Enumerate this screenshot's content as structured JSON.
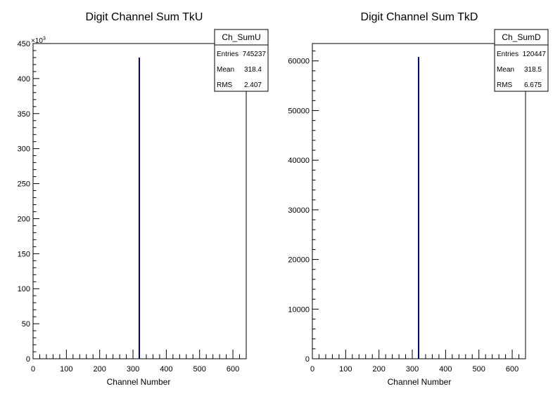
{
  "colors": {
    "histogram": "#000080",
    "frame": "#000000",
    "background": "#ffffff"
  },
  "chart_data": [
    {
      "type": "bar",
      "title": "Digit Channel Sum TkU",
      "xlabel": "Channel Number",
      "ylabel": "",
      "exponent_label": "×10",
      "exponent_power": "3",
      "xlim": [
        0,
        640
      ],
      "ylim": [
        0,
        450
      ],
      "xticks": [
        "0",
        "100",
        "200",
        "300",
        "400",
        "500",
        "600"
      ],
      "yticks": [
        "0",
        "50",
        "100",
        "150",
        "200",
        "250",
        "300",
        "350",
        "400",
        "450"
      ],
      "bars": [
        {
          "x": 319,
          "value": 430
        }
      ],
      "stats": {
        "name": "Ch_SumU",
        "rows": [
          {
            "label": "Entries",
            "value": "745237"
          },
          {
            "label": "Mean",
            "value": "318.4"
          },
          {
            "label": "RMS",
            "value": "2.407"
          }
        ]
      }
    },
    {
      "type": "bar",
      "title": "Digit Channel Sum TkD",
      "xlabel": "Channel Number",
      "ylabel": "",
      "exponent_label": "",
      "exponent_power": "",
      "xlim": [
        0,
        640
      ],
      "ylim": [
        0,
        63500
      ],
      "xticks": [
        "0",
        "100",
        "200",
        "300",
        "400",
        "500",
        "600"
      ],
      "yticks": [
        "0",
        "10000",
        "20000",
        "30000",
        "40000",
        "50000",
        "60000"
      ],
      "bars": [
        {
          "x": 319,
          "value": 60800
        }
      ],
      "stats": {
        "name": "Ch_SumD",
        "rows": [
          {
            "label": "Entries",
            "value": "120447"
          },
          {
            "label": "Mean",
            "value": "318.5"
          },
          {
            "label": "RMS",
            "value": "6.675"
          }
        ]
      }
    }
  ]
}
